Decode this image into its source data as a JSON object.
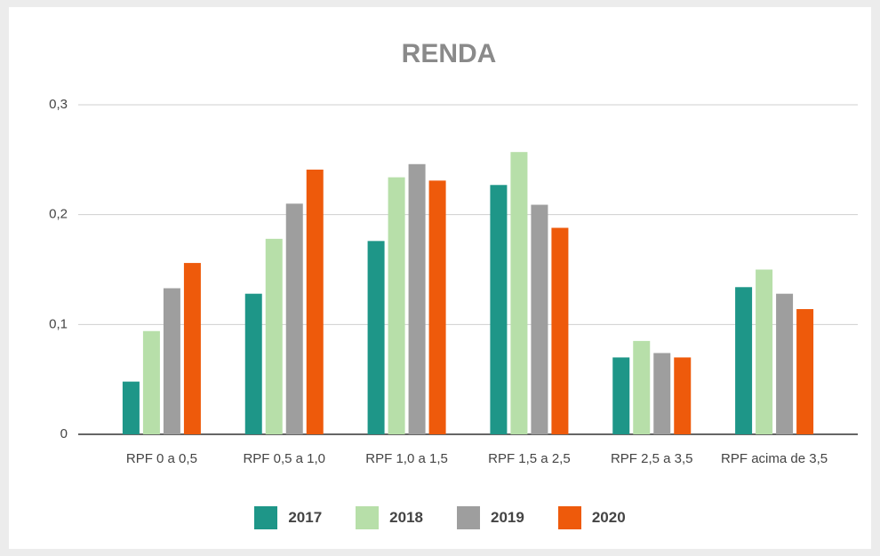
{
  "chart_data": {
    "type": "bar",
    "title": "RENDA",
    "categories": [
      "RPF 0 a 0,5",
      "RPF 0,5 a 1,0",
      "RPF 1,0 a 1,5",
      "RPF 1,5 a 2,5",
      "RPF 2,5 a 3,5",
      "RPF acima de 3,5"
    ],
    "series": [
      {
        "name": "2017",
        "color": "#1e9688",
        "values": [
          0.048,
          0.128,
          0.176,
          0.227,
          0.07,
          0.134
        ]
      },
      {
        "name": "2018",
        "color": "#b7dfa9",
        "values": [
          0.094,
          0.178,
          0.234,
          0.257,
          0.085,
          0.15
        ]
      },
      {
        "name": "2019",
        "color": "#9e9e9e",
        "values": [
          0.133,
          0.21,
          0.246,
          0.209,
          0.074,
          0.128
        ]
      },
      {
        "name": "2020",
        "color": "#ee5a0b",
        "values": [
          0.156,
          0.241,
          0.231,
          0.188,
          0.07,
          0.114
        ]
      }
    ],
    "ylim": [
      0,
      0.3
    ],
    "yticks": [
      0,
      {
        "value": 0.1,
        "label": "0,1"
      },
      {
        "value": 0.2,
        "label": "0,2"
      },
      {
        "value": 0.3,
        "label": "0,3"
      }
    ],
    "grid": true,
    "legend": "bottom"
  }
}
